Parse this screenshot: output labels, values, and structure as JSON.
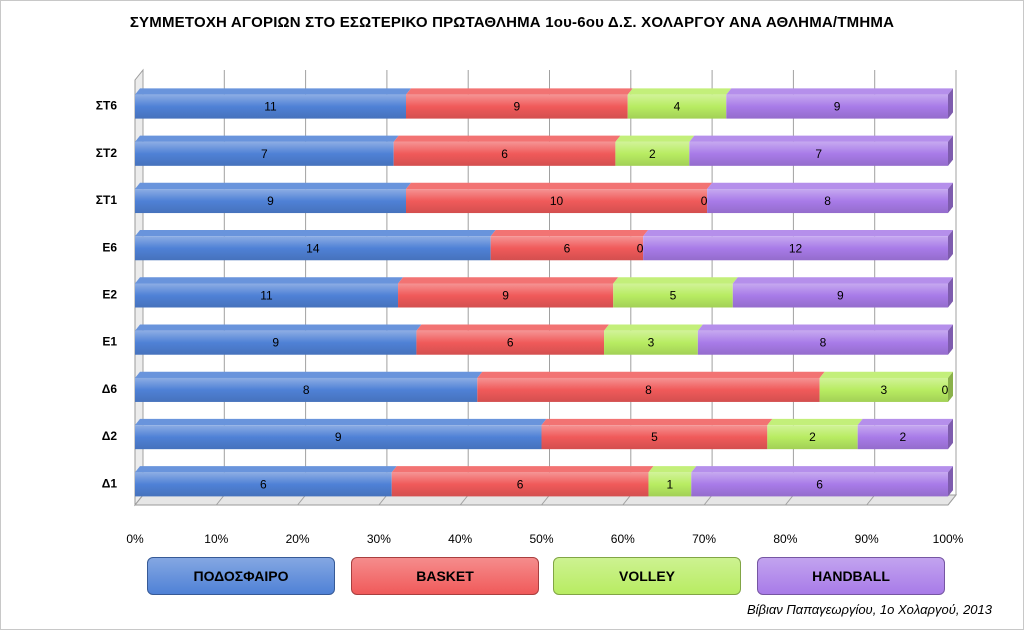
{
  "chart_data": {
    "type": "bar",
    "orientation": "horizontal",
    "stacked": "percent",
    "title": "ΣΥΜΜΕΤΟΧΗ ΑΓΟΡΙΩΝ ΣΤΟ ΕΣΩΤΕΡΙΚΟ ΠΡΩΤΑΘΛΗΜΑ 1ου-6ου Δ.Σ. ΧΟΛΑΡΓΟΥ ΑΝΑ ΑΘΛΗΜΑ/ΤΜΗΜΑ",
    "categories": [
      "Δ1",
      "Δ2",
      "Δ6",
      "Ε1",
      "Ε2",
      "Ε6",
      "ΣΤ1",
      "ΣΤ2",
      "ΣΤ6"
    ],
    "series": [
      {
        "name": "ΠΟΔΟΣΦΑΙΡΟ",
        "color": "#4f81d6",
        "values": [
          6,
          9,
          8,
          9,
          11,
          14,
          9,
          7,
          11
        ]
      },
      {
        "name": "BASKET",
        "color": "#f05a5a",
        "values": [
          6,
          5,
          8,
          6,
          9,
          6,
          10,
          6,
          9
        ]
      },
      {
        "name": "VOLLEY",
        "color": "#b8ec62",
        "values": [
          1,
          2,
          3,
          3,
          5,
          0,
          0,
          2,
          4
        ]
      },
      {
        "name": "HANDBALL",
        "color": "#a87be8",
        "values": [
          6,
          2,
          0,
          8,
          9,
          12,
          8,
          7,
          9
        ]
      }
    ],
    "xaxis_ticks": [
      "0%",
      "10%",
      "20%",
      "30%",
      "40%",
      "50%",
      "60%",
      "70%",
      "80%",
      "90%",
      "100%"
    ],
    "xlim": [
      0,
      100
    ],
    "grid": true,
    "legend_position": "bottom"
  },
  "credit": "Βίβιαν Παπαγεωργίου, 1ο Χολαργού, 2013"
}
